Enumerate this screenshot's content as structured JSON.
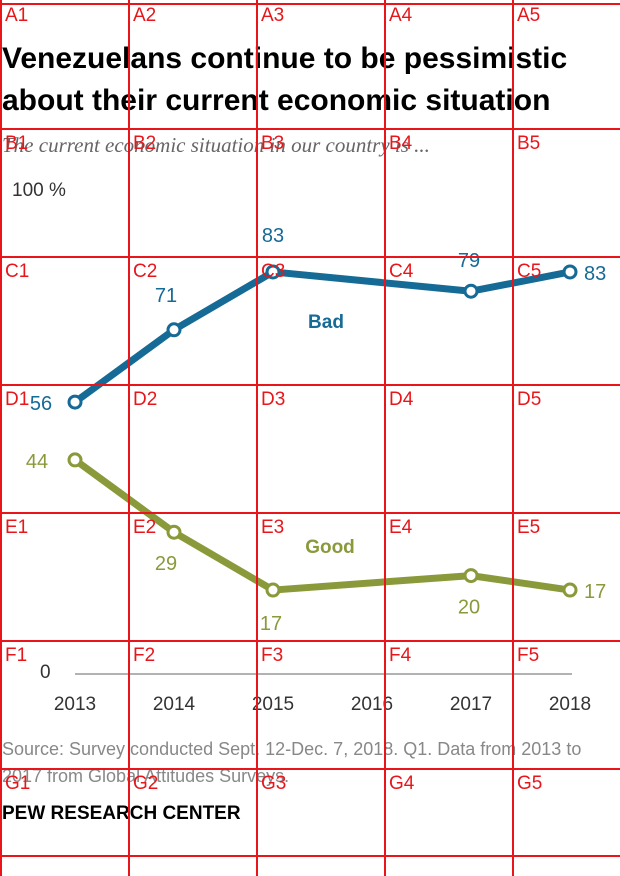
{
  "title": "Venezuelans continue to be pessimistic about their current economic situation",
  "subtitle": "The current economic situation in our country is ...",
  "y_top_label": "100 %",
  "y_zero_label": "0",
  "source": "Source: Survey conducted Sept. 12-Dec. 7, 2018. Q1. Data from 2013 to 2017 from Global Attitudes Surveys.",
  "brand": "PEW RESEARCH CENTER",
  "grid_overlay": {
    "columns": [
      "1",
      "2",
      "3",
      "4",
      "5"
    ],
    "rows": [
      "A",
      "B",
      "C",
      "D",
      "E",
      "F",
      "G"
    ],
    "color": "#e8161b"
  },
  "chart_data": {
    "type": "line",
    "x": [
      "2013",
      "2014",
      "2015",
      "2016",
      "2017",
      "2018"
    ],
    "ylim": [
      0,
      100
    ],
    "series": [
      {
        "name": "Bad",
        "color": "#166a96",
        "points": [
          [
            2013,
            56
          ],
          [
            2014,
            71
          ],
          [
            2015,
            83
          ],
          [
            2017,
            79
          ],
          [
            2018,
            83
          ]
        ]
      },
      {
        "name": "Good",
        "color": "#8a9a3b",
        "points": [
          [
            2013,
            44
          ],
          [
            2014,
            29
          ],
          [
            2015,
            17
          ],
          [
            2017,
            20
          ],
          [
            2018,
            17
          ]
        ]
      }
    ]
  }
}
